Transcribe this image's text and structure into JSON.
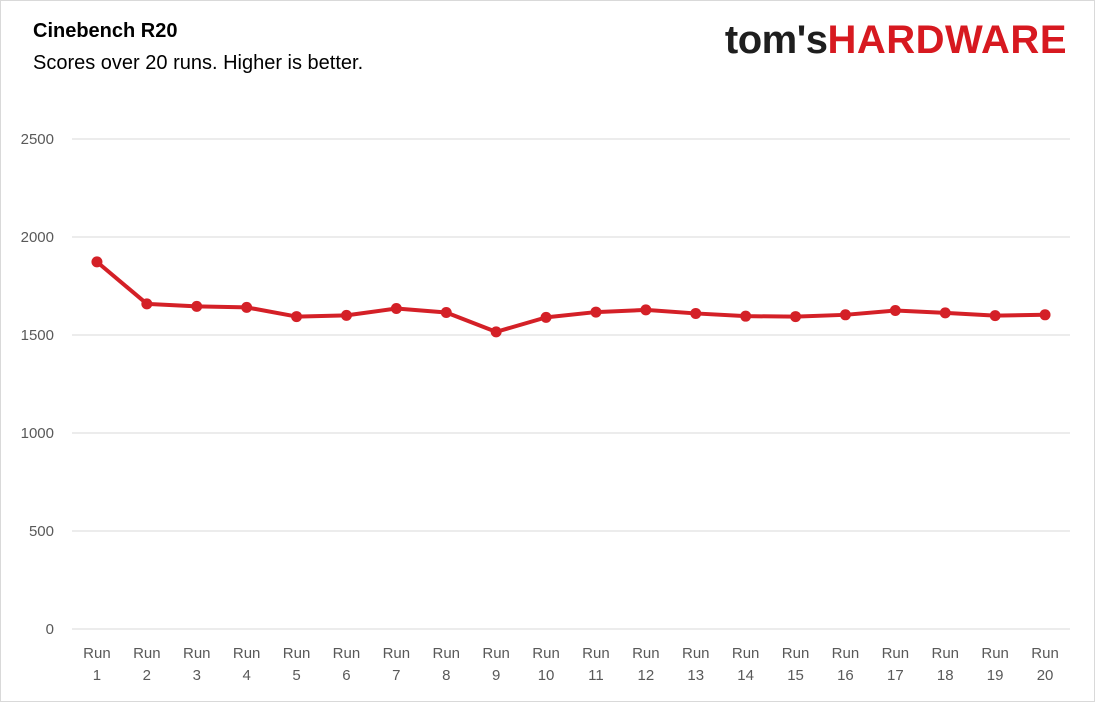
{
  "header": {
    "title": "Cinebench R20",
    "subtitle": "Scores over 20 runs. Higher is better.",
    "logo_toms": "tom's",
    "logo_hardware": "HARDWARE"
  },
  "colors": {
    "series": "#d42027",
    "grid": "#d9d9d9",
    "tick_text": "#595959",
    "logo_red": "#d71920"
  },
  "chart_data": {
    "type": "line",
    "title": "Cinebench R20",
    "subtitle": "Scores over 20 runs. Higher is better.",
    "xlabel": "",
    "ylabel": "",
    "ylim": [
      0,
      2500
    ],
    "yticks": [
      0,
      500,
      1000,
      1500,
      2000,
      2500
    ],
    "grid": true,
    "legend": "none",
    "categories": [
      [
        "Run",
        "1"
      ],
      [
        "Run",
        "2"
      ],
      [
        "Run",
        "3"
      ],
      [
        "Run",
        "4"
      ],
      [
        "Run",
        "5"
      ],
      [
        "Run",
        "6"
      ],
      [
        "Run",
        "7"
      ],
      [
        "Run",
        "8"
      ],
      [
        "Run",
        "9"
      ],
      [
        "Run",
        "10"
      ],
      [
        "Run",
        "11"
      ],
      [
        "Run",
        "12"
      ],
      [
        "Run",
        "13"
      ],
      [
        "Run",
        "14"
      ],
      [
        "Run",
        "15"
      ],
      [
        "Run",
        "16"
      ],
      [
        "Run",
        "17"
      ],
      [
        "Run",
        "18"
      ],
      [
        "Run",
        "19"
      ],
      [
        "Run",
        "20"
      ]
    ],
    "series": [
      {
        "values": [
          1873,
          1659,
          1646,
          1641,
          1594,
          1600,
          1635,
          1615,
          1516,
          1590,
          1617,
          1628,
          1610,
          1596,
          1594,
          1603,
          1625,
          1613,
          1599,
          1603
        ]
      }
    ]
  }
}
